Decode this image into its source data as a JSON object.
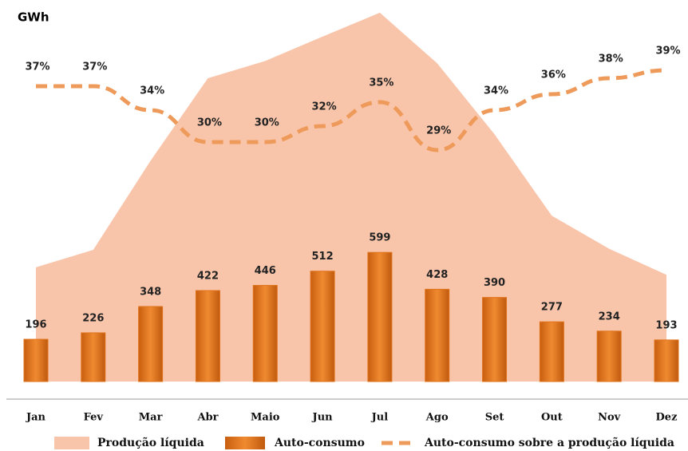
{
  "chart_data": {
    "type": "bar",
    "ylabel": "GWh",
    "categories": [
      "Jan",
      "Fev",
      "Mar",
      "Abr",
      "Maio",
      "Jun",
      "Jul",
      "Ago",
      "Set",
      "Out",
      "Nov",
      "Dez"
    ],
    "ylim": [
      0,
      1740
    ],
    "y2lim": [
      0,
      47
    ],
    "series": [
      {
        "name": "Produção líquida",
        "type": "area",
        "color": "#f9c5aa",
        "values": [
          530,
          611,
          1024,
          1407,
          1487,
          1600,
          1711,
          1476,
          1147,
          769,
          616,
          495
        ]
      },
      {
        "name": "Auto-consumo",
        "type": "bar",
        "color": "#e0731c",
        "values": [
          196,
          226,
          348,
          422,
          446,
          512,
          599,
          428,
          390,
          277,
          234,
          193
        ]
      },
      {
        "name": "Auto-consumo sobre a produção líquida",
        "type": "line",
        "axis": "y2",
        "color": "#ee9a5a",
        "values": [
          37,
          37,
          34,
          30,
          30,
          32,
          35,
          29,
          34,
          36,
          38,
          39
        ],
        "value_labels": [
          "37%",
          "37%",
          "34%",
          "30%",
          "30%",
          "32%",
          "35%",
          "29%",
          "34%",
          "36%",
          "38%",
          "39%"
        ]
      }
    ]
  }
}
